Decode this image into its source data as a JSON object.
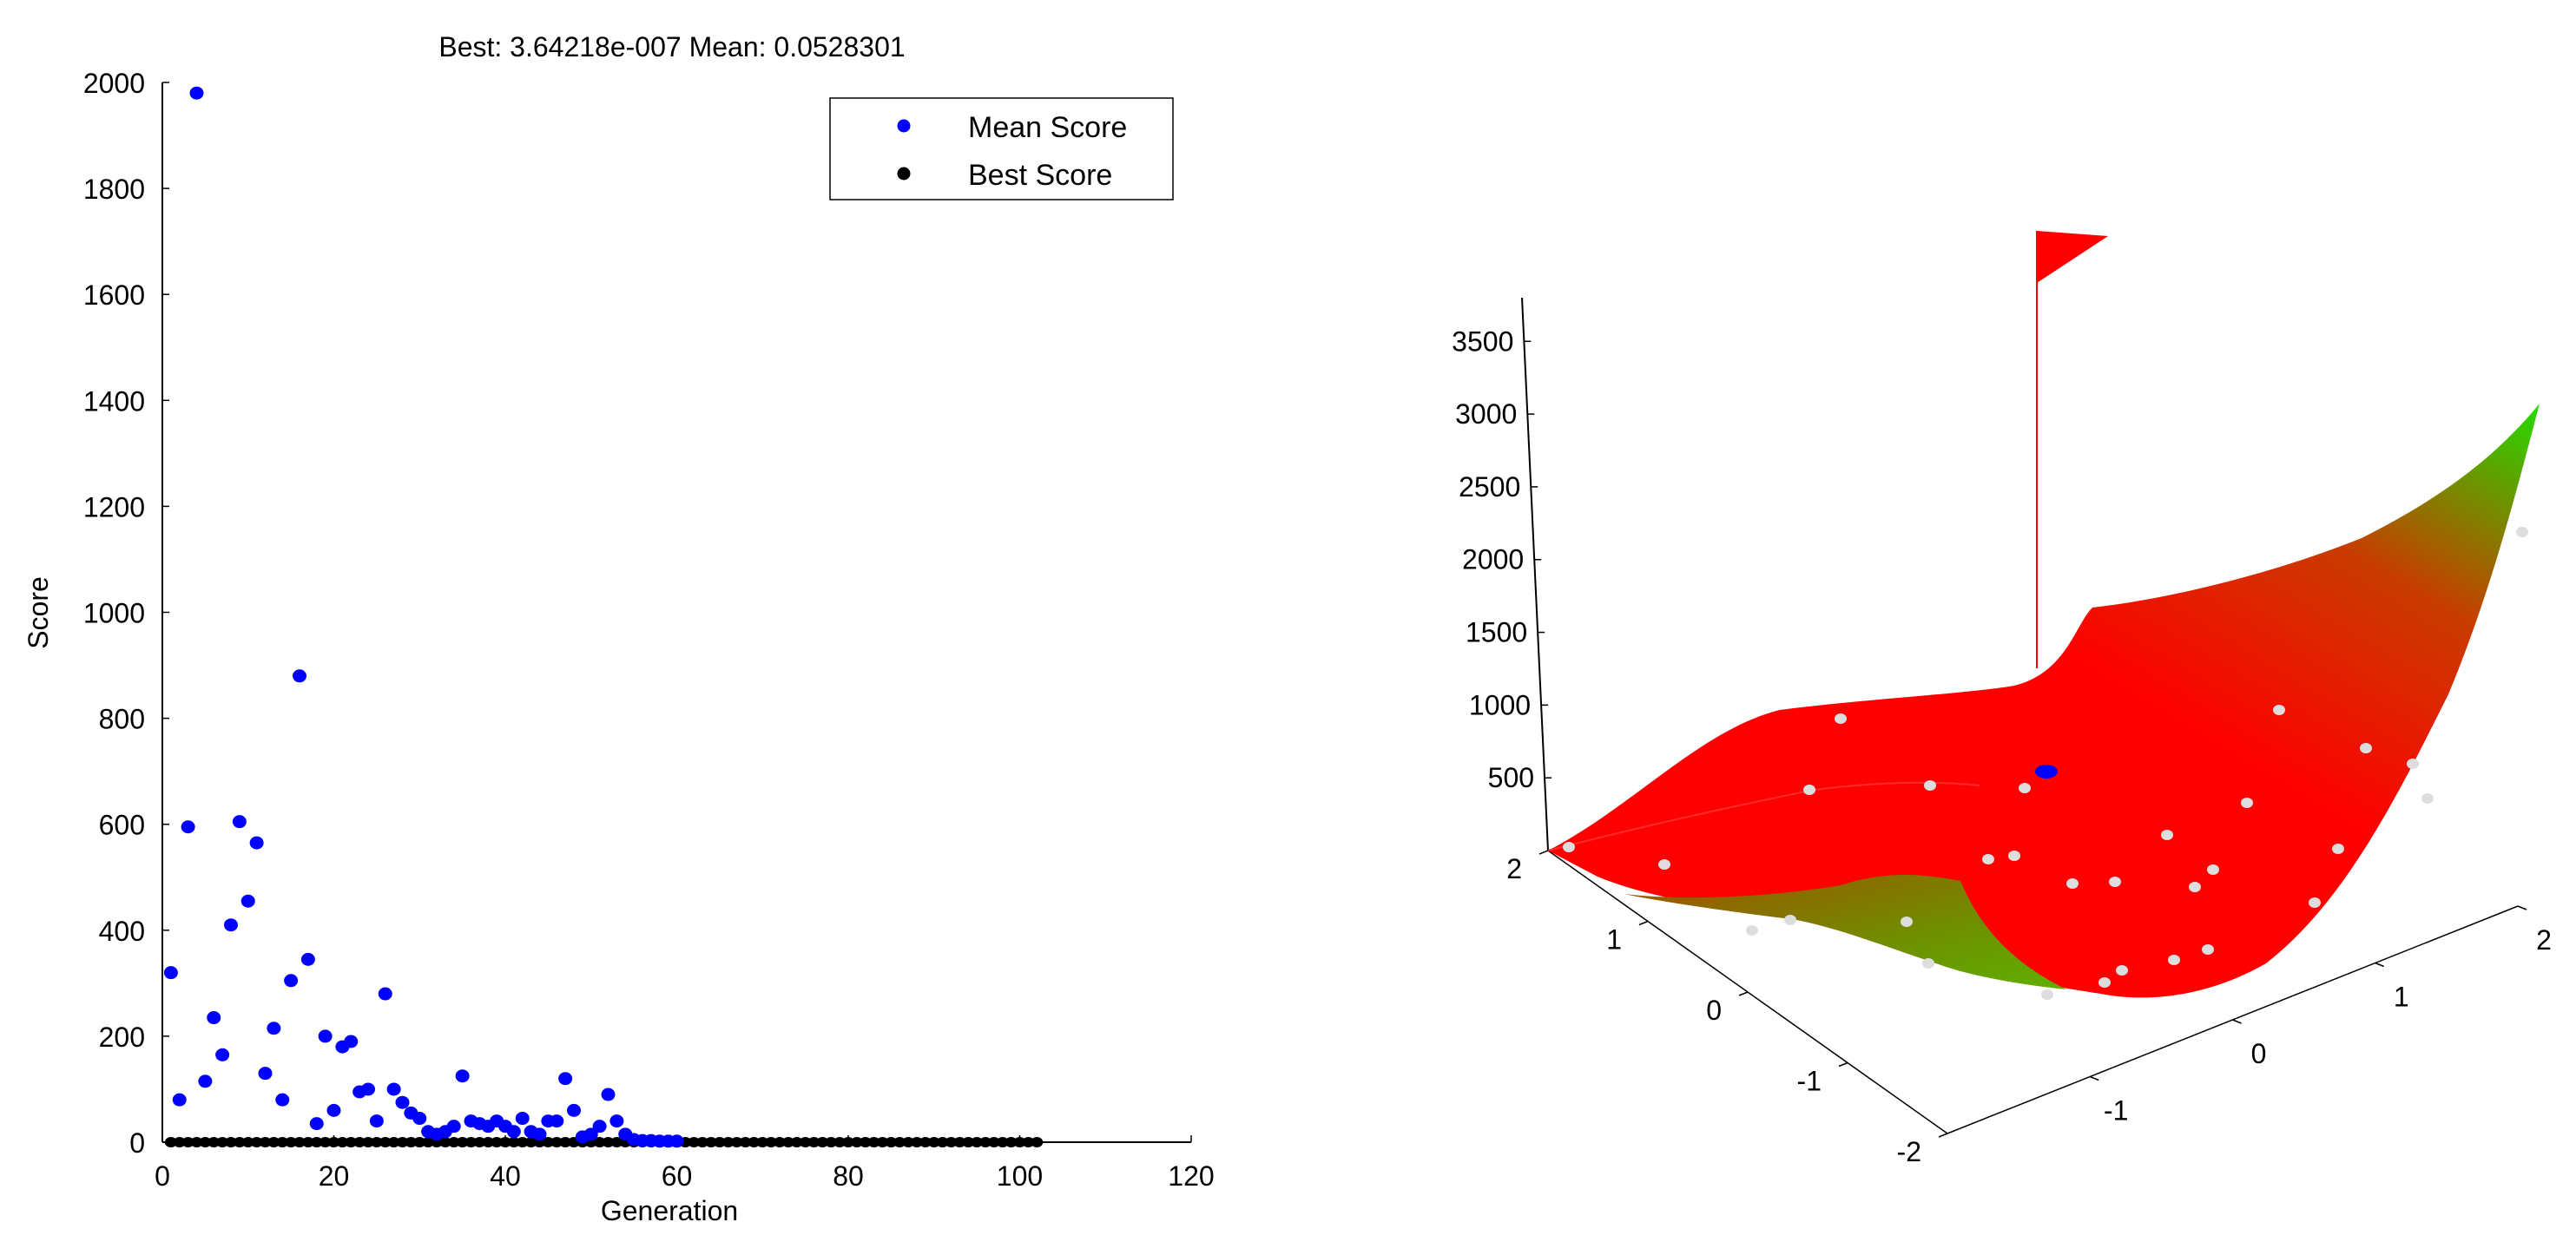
{
  "chart_data": [
    {
      "type": "scatter",
      "title": "Best: 3.64218e-007 Mean: 0.0528301",
      "xlabel": "Generation",
      "ylabel": "Score",
      "xlim": [
        0,
        120
      ],
      "ylim": [
        0,
        2000
      ],
      "xticks": [
        "0",
        "20",
        "40",
        "60",
        "80",
        "100",
        "120"
      ],
      "yticks": [
        "0",
        "200",
        "400",
        "600",
        "800",
        "1000",
        "1200",
        "1400",
        "1600",
        "1800",
        "2000"
      ],
      "grid": false,
      "legend_position": "top-right",
      "series": [
        {
          "name": "Mean Score",
          "color": "#0000ff",
          "x": [
            1,
            2,
            3,
            4,
            5,
            6,
            7,
            8,
            9,
            10,
            11,
            12,
            13,
            14,
            15,
            16,
            17,
            18,
            19,
            20,
            21,
            22,
            23,
            24,
            25,
            26,
            27,
            28,
            29,
            30,
            31,
            32,
            33,
            34,
            35,
            36,
            37,
            38,
            39,
            40,
            41,
            42,
            43,
            44,
            45,
            46,
            47,
            48,
            49,
            50,
            51,
            52,
            53,
            54,
            55,
            56,
            57,
            58,
            59,
            60
          ],
          "y": [
            320,
            80,
            595,
            1980,
            115,
            235,
            165,
            410,
            605,
            455,
            565,
            130,
            215,
            80,
            305,
            880,
            345,
            35,
            200,
            60,
            180,
            190,
            95,
            100,
            40,
            280,
            100,
            75,
            55,
            45,
            20,
            15,
            20,
            30,
            125,
            40,
            35,
            30,
            40,
            30,
            20,
            45,
            20,
            15,
            40,
            40,
            120,
            60,
            10,
            15,
            30,
            90,
            40,
            15,
            5,
            3,
            3,
            2,
            2,
            2
          ]
        },
        {
          "name": "Best Score",
          "color": "#000000",
          "x_range": [
            1,
            102
          ],
          "y": 0
        }
      ]
    },
    {
      "type": "surface",
      "zlim": [
        0,
        3800
      ],
      "xlim": [
        -2,
        2
      ],
      "ylim": [
        -2,
        2
      ],
      "zticks": [
        "500",
        "1000",
        "1500",
        "2000",
        "2500",
        "3000",
        "3500"
      ],
      "xticks": [
        "-1",
        "0",
        "1",
        "2"
      ],
      "yticks": [
        "-2",
        "-1",
        "0",
        "1",
        "2"
      ],
      "colors": {
        "surface_low": "#ff0000",
        "surface_high": "#22dd00",
        "flag": "#ff0000",
        "point": "#0000ff",
        "population": "#dddddd"
      }
    }
  ]
}
